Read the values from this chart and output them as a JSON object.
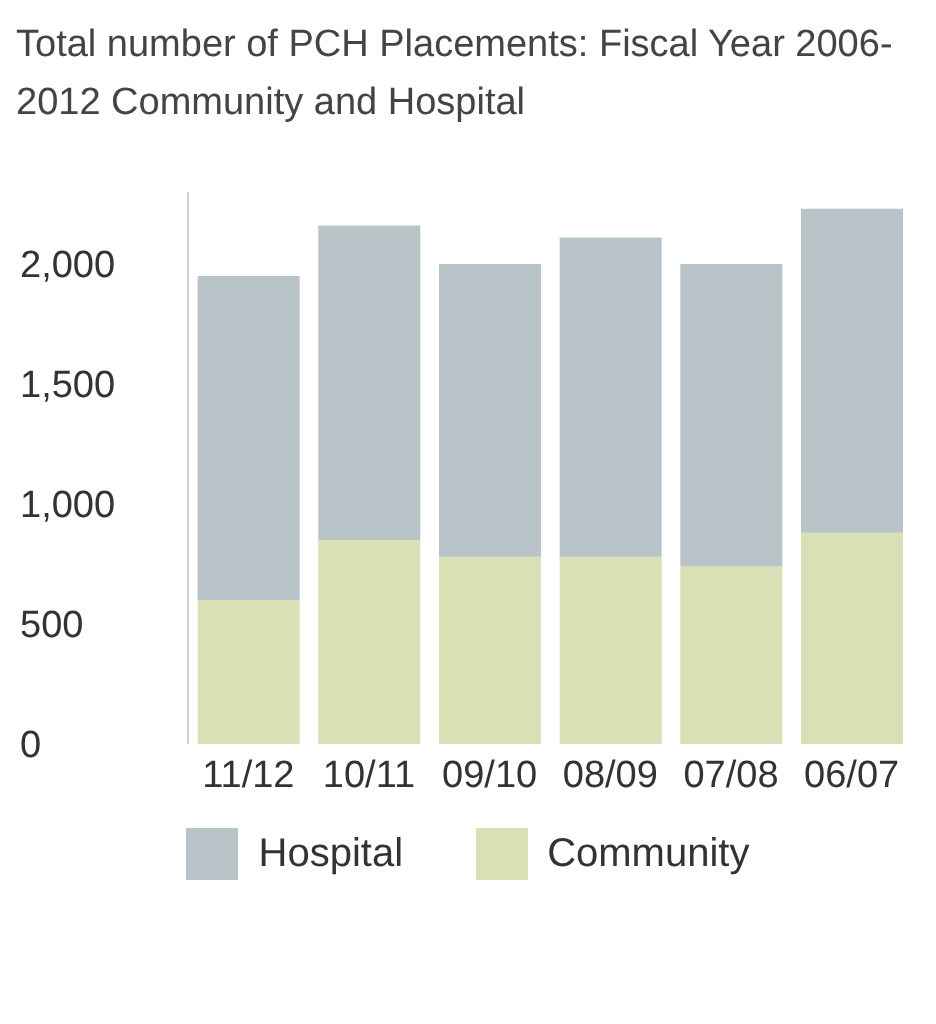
{
  "chart_data": {
    "type": "bar",
    "title": "Total number of PCH Placements:  Fiscal Year 2006-2012 Community and Hospital",
    "categories": [
      "11/12",
      "10/11",
      "09/10",
      "08/09",
      "07/08",
      "06/07"
    ],
    "stacked": true,
    "series": [
      {
        "name": "Community",
        "color": "#d9e0b6",
        "values": [
          600,
          850,
          780,
          780,
          740,
          880
        ]
      },
      {
        "name": "Hospital",
        "color": "#b9c4c9",
        "values": [
          1350,
          1310,
          1220,
          1330,
          1260,
          1350
        ]
      }
    ],
    "ylim": [
      0,
      2300
    ],
    "yticks": [
      0,
      500,
      {
        "value": 1000,
        "label": "1,000"
      },
      {
        "value": 1500,
        "label": "1,500"
      },
      {
        "value": 2000,
        "label": "2,000"
      }
    ],
    "grid": false,
    "legend": "bottom"
  }
}
